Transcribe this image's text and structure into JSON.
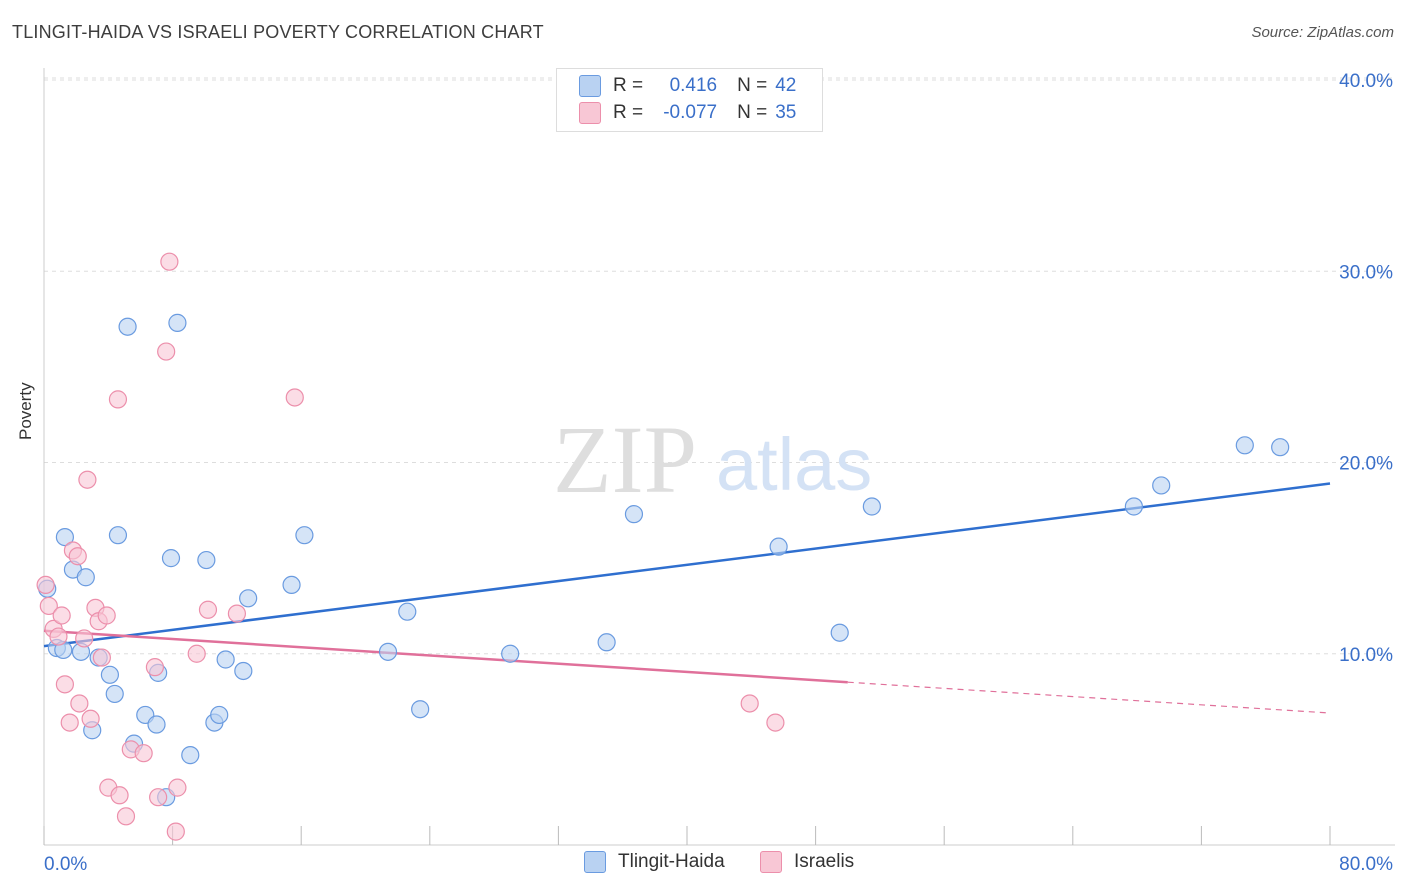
{
  "title": "TLINGIT-HAIDA VS ISRAELI POVERTY CORRELATION CHART",
  "source": "Source: ZipAtlas.com",
  "watermark": {
    "zip": "ZIP",
    "atlas": "atlas"
  },
  "legend": {
    "rows": [
      {
        "r_label": "R =",
        "r_value": "0.416",
        "n_label": "N =",
        "n_value": "42"
      },
      {
        "r_label": "R =",
        "r_value": "-0.077",
        "n_label": "N =",
        "n_value": "35"
      }
    ]
  },
  "colors": {
    "blue_fill": "#b9d2f2",
    "blue_stroke": "#6a9be0",
    "blue_line": "#2f6fcf",
    "pink_fill": "#f8c7d5",
    "pink_stroke": "#ec8fab",
    "pink_line": "#e0709a",
    "axis_text": "#3a6fc9",
    "grid": "#dddddd"
  },
  "chart_data": {
    "type": "scatter",
    "title": "TLINGIT-HAIDA VS ISRAELI POVERTY CORRELATION CHART",
    "xlabel": "",
    "ylabel": "Poverty",
    "xlim": [
      0,
      80
    ],
    "ylim": [
      0,
      40
    ],
    "x_tick_labels": [
      "0.0%",
      "80.0%"
    ],
    "y_tick_labels": [
      "10.0%",
      "20.0%",
      "30.0%",
      "40.0%"
    ],
    "y_ticks": [
      10,
      20,
      30,
      40
    ],
    "series": [
      {
        "name": "Tlingit-Haida",
        "color": "blue",
        "points": [
          [
            0.2,
            13.4
          ],
          [
            0.8,
            10.3
          ],
          [
            1.2,
            10.2
          ],
          [
            1.3,
            16.1
          ],
          [
            1.8,
            14.4
          ],
          [
            2.6,
            14.0
          ],
          [
            2.3,
            10.1
          ],
          [
            3.0,
            6.0
          ],
          [
            3.4,
            9.8
          ],
          [
            4.1,
            8.9
          ],
          [
            4.4,
            7.9
          ],
          [
            4.6,
            16.2
          ],
          [
            5.2,
            27.1
          ],
          [
            5.6,
            5.3
          ],
          [
            6.3,
            6.8
          ],
          [
            7.0,
            6.3
          ],
          [
            7.1,
            9.0
          ],
          [
            7.6,
            2.5
          ],
          [
            7.9,
            15.0
          ],
          [
            8.3,
            27.3
          ],
          [
            9.1,
            4.7
          ],
          [
            10.1,
            14.9
          ],
          [
            10.6,
            6.4
          ],
          [
            10.9,
            6.8
          ],
          [
            11.3,
            9.7
          ],
          [
            12.4,
            9.1
          ],
          [
            12.7,
            12.9
          ],
          [
            15.4,
            13.6
          ],
          [
            16.2,
            16.2
          ],
          [
            21.4,
            10.1
          ],
          [
            22.6,
            12.2
          ],
          [
            23.4,
            7.1
          ],
          [
            29.0,
            10.0
          ],
          [
            35.0,
            10.6
          ],
          [
            36.7,
            17.3
          ],
          [
            45.7,
            15.6
          ],
          [
            49.5,
            11.1
          ],
          [
            51.5,
            17.7
          ],
          [
            67.8,
            17.7
          ],
          [
            69.5,
            18.8
          ],
          [
            74.7,
            20.9
          ],
          [
            76.9,
            20.8
          ]
        ]
      },
      {
        "name": "Israelis",
        "color": "pink",
        "points": [
          [
            0.1,
            13.6
          ],
          [
            0.3,
            12.5
          ],
          [
            0.6,
            11.3
          ],
          [
            0.9,
            10.9
          ],
          [
            1.1,
            12.0
          ],
          [
            1.3,
            8.4
          ],
          [
            1.6,
            6.4
          ],
          [
            1.8,
            15.4
          ],
          [
            2.1,
            15.1
          ],
          [
            2.2,
            7.4
          ],
          [
            2.5,
            10.8
          ],
          [
            2.7,
            19.1
          ],
          [
            2.9,
            6.6
          ],
          [
            3.2,
            12.4
          ],
          [
            3.4,
            11.7
          ],
          [
            3.6,
            9.8
          ],
          [
            3.9,
            12.0
          ],
          [
            4.0,
            3.0
          ],
          [
            4.6,
            23.3
          ],
          [
            4.7,
            2.6
          ],
          [
            5.1,
            1.5
          ],
          [
            5.4,
            5.0
          ],
          [
            6.2,
            4.8
          ],
          [
            6.9,
            9.3
          ],
          [
            7.1,
            2.5
          ],
          [
            7.6,
            25.8
          ],
          [
            7.8,
            30.5
          ],
          [
            8.2,
            0.7
          ],
          [
            8.3,
            3.0
          ],
          [
            9.5,
            10.0
          ],
          [
            10.2,
            12.3
          ],
          [
            12.0,
            12.1
          ],
          [
            15.6,
            23.4
          ],
          [
            43.9,
            7.4
          ],
          [
            45.5,
            6.4
          ]
        ]
      }
    ],
    "trend_lines": [
      {
        "series": "Tlingit-Haida",
        "x": [
          0,
          80
        ],
        "y": [
          10.4,
          18.9
        ],
        "dashed_from": null
      },
      {
        "series": "Israelis",
        "x": [
          0,
          80
        ],
        "y": [
          11.2,
          6.9
        ],
        "dashed_from": 50
      }
    ]
  },
  "bottom_legend": {
    "items": [
      "Tlingit-Haida",
      "Israelis"
    ]
  }
}
